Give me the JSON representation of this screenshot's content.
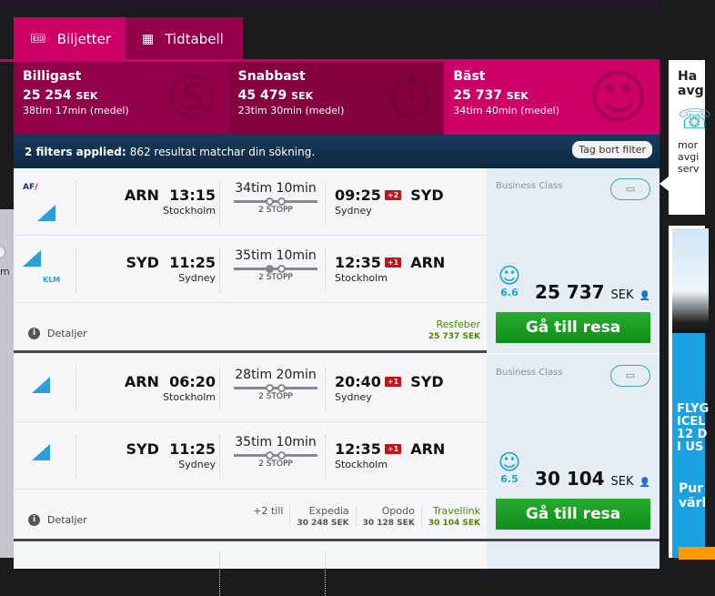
{
  "tabs": [
    {
      "label": "Biljetter",
      "icon": "ticket-icon",
      "active": true
    },
    {
      "label": "Tidtabell",
      "icon": "timetable-icon",
      "active": false
    }
  ],
  "summary": [
    {
      "title": "Billigast",
      "price": "25 254",
      "currency": "SEK",
      "duration": "38tim 17min (medel)",
      "icon": "coins-icon"
    },
    {
      "title": "Snabbast",
      "price": "45 479",
      "currency": "SEK",
      "duration": "23tim 30min (medel)",
      "icon": "stopwatch-icon"
    },
    {
      "title": "Bäst",
      "price": "25 737",
      "currency": "SEK",
      "duration": "34tim 40min (medel)",
      "icon": "smiley-icon"
    }
  ],
  "filter": {
    "applied": "2 filters applied:",
    "text": "862 resultat matchar din sökning.",
    "clear_label": "Tag bort filter"
  },
  "left_strip": {
    "text": "m"
  },
  "results": [
    {
      "legs": [
        {
          "airlines": [
            "AF",
            "China Southern"
          ],
          "dep_code": "ARN",
          "dep_time": "13:15",
          "dep_city": "Stockholm",
          "duration": "34tim 10min",
          "stops": "2 STOPP",
          "arr_time": "09:25",
          "day_offset": "+2",
          "arr_code": "SYD",
          "arr_city": "Sydney"
        },
        {
          "airlines": [
            "China Southern",
            "KLM"
          ],
          "dep_code": "SYD",
          "dep_time": "11:25",
          "dep_city": "Sydney",
          "duration": "35tim 10min",
          "stops": "2 STOPP",
          "arr_time": "12:35",
          "day_offset": "+1",
          "arr_code": "ARN",
          "arr_city": "Stockholm"
        }
      ],
      "details_label": "Detaljer",
      "more": "",
      "providers": [
        {
          "name": "Resfeber",
          "price": "25 737 SEK",
          "best": true
        }
      ],
      "cabin": "Business Class",
      "rating": "6.6",
      "price": "25 737",
      "currency": "SEK",
      "go_label": "Gå till resa"
    },
    {
      "legs": [
        {
          "airlines": [
            "China Southern"
          ],
          "dep_code": "ARN",
          "dep_time": "06:20",
          "dep_city": "Stockholm",
          "duration": "28tim 20min",
          "stops": "2 STOPP",
          "arr_time": "20:40",
          "day_offset": "+1",
          "arr_code": "SYD",
          "arr_city": "Sydney"
        },
        {
          "airlines": [
            "China Southern"
          ],
          "dep_code": "SYD",
          "dep_time": "11:25",
          "dep_city": "Sydney",
          "duration": "35tim 10min",
          "stops": "2 STOPP",
          "arr_time": "12:35",
          "day_offset": "+1",
          "arr_code": "ARN",
          "arr_city": "Stockholm"
        }
      ],
      "details_label": "Detaljer",
      "more": "+2 till",
      "providers": [
        {
          "name": "Expedia",
          "price": "30 248 SEK",
          "best": false
        },
        {
          "name": "Opodo",
          "price": "30 128 SEK",
          "best": false
        },
        {
          "name": "Travellink",
          "price": "30 104 SEK",
          "best": true
        }
      ],
      "cabin": "Business Class",
      "rating": "6.5",
      "price": "30 104",
      "currency": "SEK",
      "go_label": "Gå till resa"
    }
  ],
  "sidebox": {
    "heading": "Ha avg",
    "text": "mor avgi serv",
    "icon": "twitter-icon"
  },
  "ad": {
    "headline": "FLYG ICEL 12 D I US",
    "sub": "Pur värl"
  },
  "colors": {
    "brand": "#cc0066",
    "brand_dark": "#93004a",
    "filter_bar": "#173a5c",
    "go_button": "#1ba02a",
    "rating": "#17a5cc",
    "day_badge": "#c0141c"
  }
}
